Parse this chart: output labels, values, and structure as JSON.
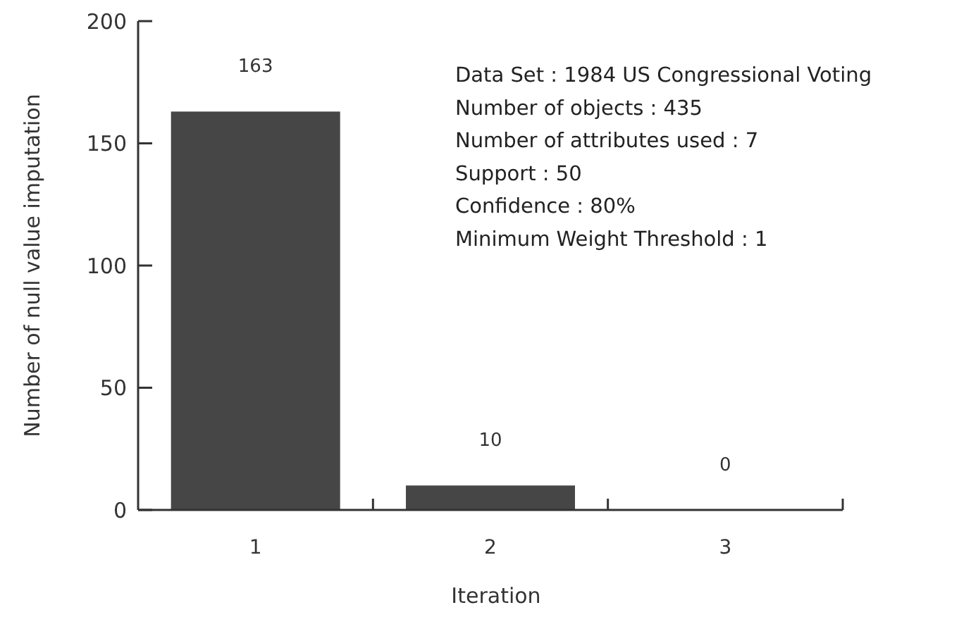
{
  "chart_data": {
    "type": "bar",
    "xlabel": "Iteration",
    "ylabel": "Number of null value imputation",
    "categories": [
      "1",
      "2",
      "3"
    ],
    "values": [
      163,
      10,
      0
    ],
    "color": "#464646",
    "ylim": [
      0,
      200
    ],
    "yticks": [
      0,
      50,
      100,
      150,
      200
    ],
    "data_labels": true,
    "annotations": [
      "Data Set :  1984 US Congressional Voting",
      "Number of objects : 435",
      "Number of attributes used :  7",
      "Support : 50",
      "Confidence : 80%",
      "Minimum Weight Threshold : 1"
    ]
  }
}
